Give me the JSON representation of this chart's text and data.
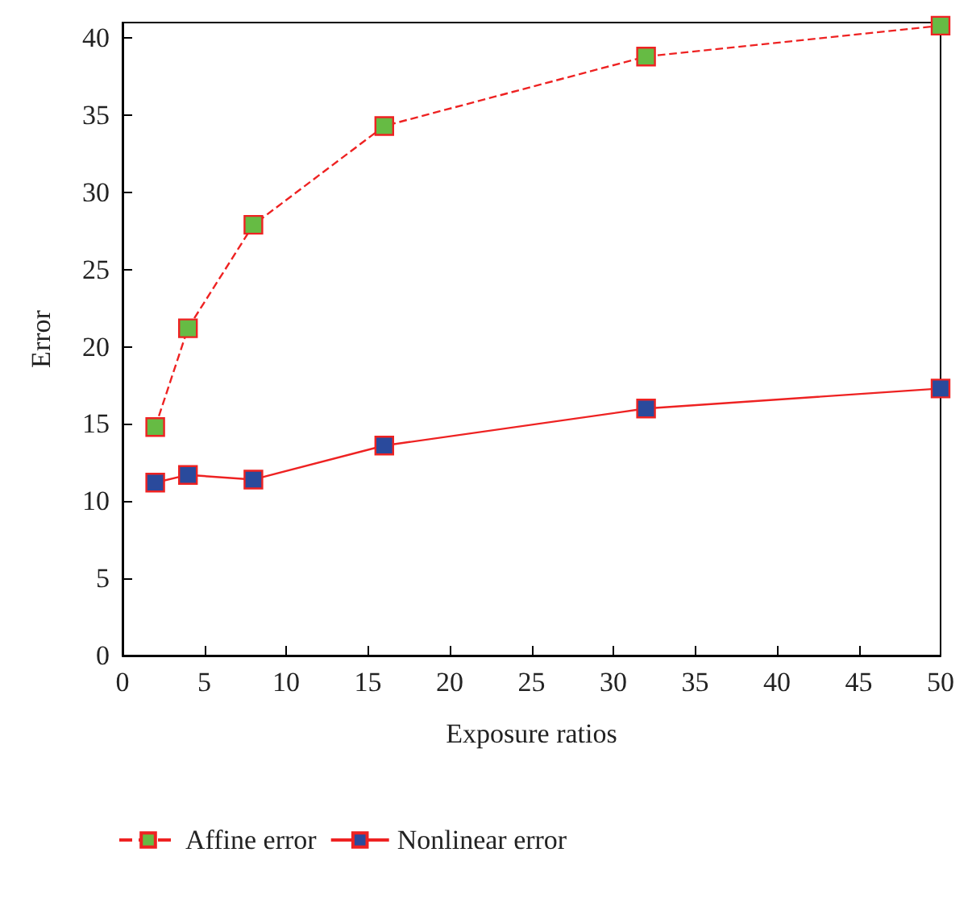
{
  "chart_data": {
    "type": "line",
    "xlabel": "Exposure ratios",
    "ylabel": "Error",
    "x": [
      2,
      4,
      8,
      16,
      32,
      50
    ],
    "series": [
      {
        "name": "Affine error",
        "color": "#66bb44",
        "line_style": "dashed",
        "values": [
          14.8,
          21.2,
          27.9,
          34.3,
          38.8,
          40.8
        ]
      },
      {
        "name": "Nonlinear error",
        "color": "#2a4a9c",
        "line_style": "solid",
        "values": [
          11.2,
          11.7,
          11.4,
          13.6,
          16.0,
          17.3
        ]
      }
    ],
    "xlim": [
      0,
      50
    ],
    "xticks": [
      0,
      5,
      10,
      15,
      20,
      25,
      30,
      35,
      40,
      45,
      50
    ],
    "ylim": [
      0,
      41
    ],
    "yticks": [
      0,
      5,
      10,
      15,
      20,
      25,
      30,
      35,
      40
    ],
    "marker": "square",
    "grid": false,
    "legend": "bottom left"
  }
}
